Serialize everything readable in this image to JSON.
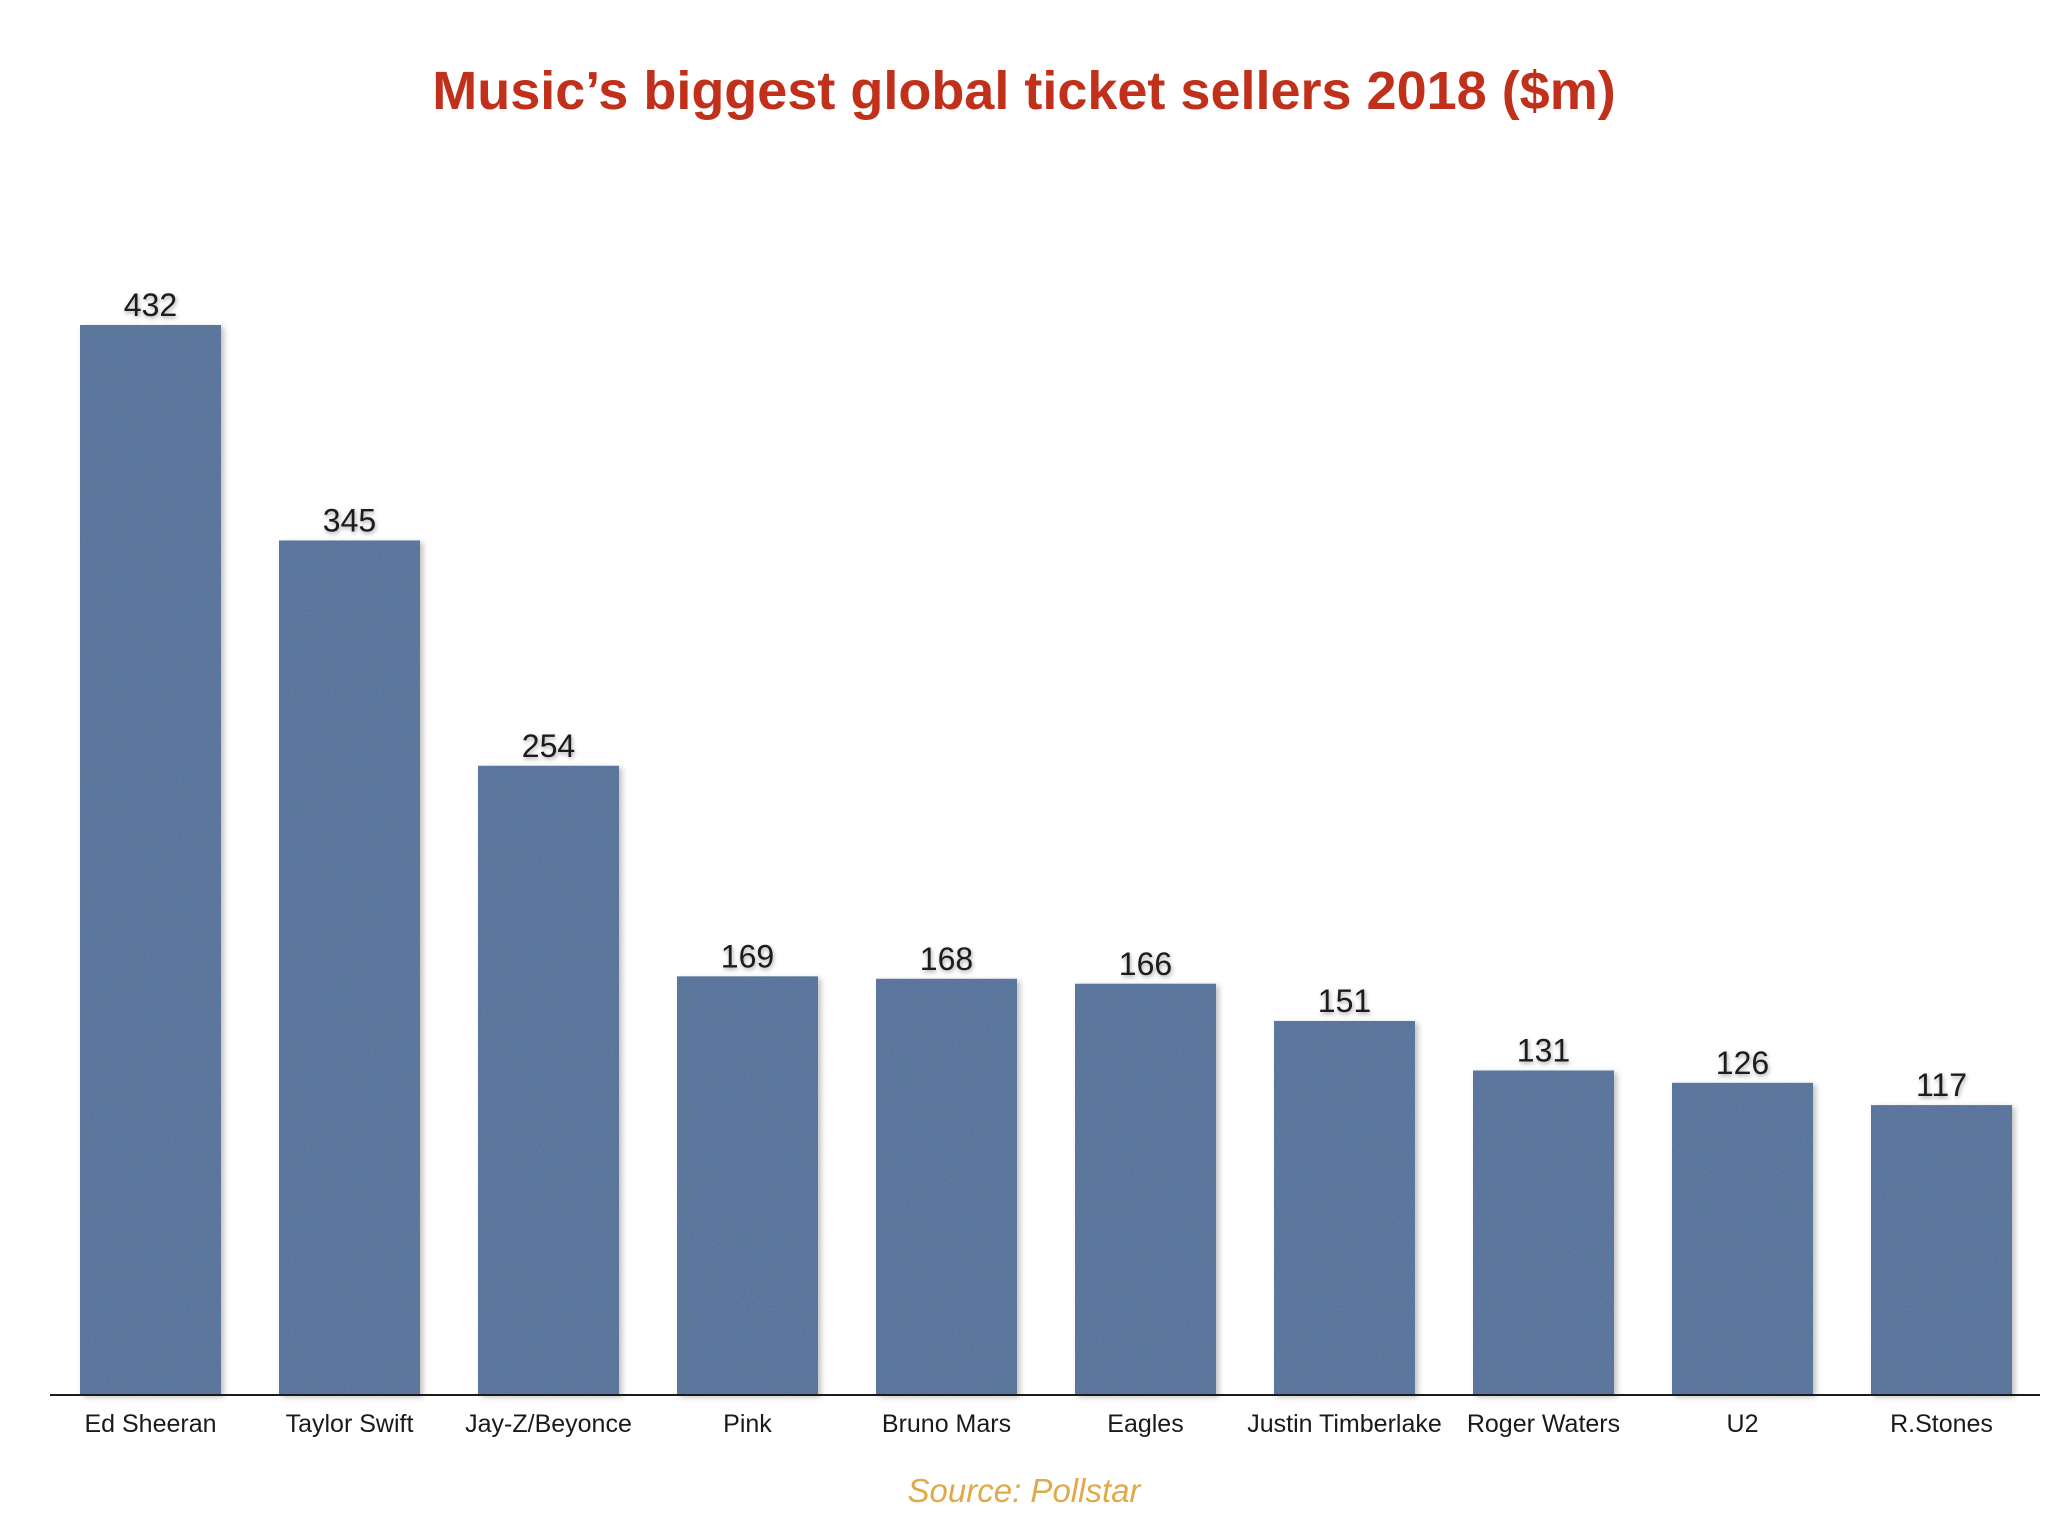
{
  "chart_data": {
    "type": "bar",
    "title": "Music’s biggest global ticket sellers 2018 ($m)",
    "categories": [
      "Ed Sheeran",
      "Taylor Swift",
      "Jay-Z/Beyonce",
      "Pink",
      "Bruno Mars",
      "Eagles",
      "Justin Timberlake",
      "Roger Waters",
      "U2",
      "R.Stones"
    ],
    "values": [
      432,
      345,
      254,
      169,
      168,
      166,
      151,
      131,
      126,
      117
    ],
    "data_labels": [
      "432",
      "345",
      "254",
      "169",
      "168",
      "166",
      "151",
      "131",
      "126",
      "117"
    ],
    "xlabel": "",
    "ylabel": "",
    "ylim": [
      0,
      432
    ],
    "grid": false,
    "legend": "none",
    "colors": {
      "bar": "#4f6b95",
      "title": "#c0301a",
      "source": "#e0a94a",
      "axis": "#1a1a1a"
    }
  },
  "source": "Source: Pollstar"
}
